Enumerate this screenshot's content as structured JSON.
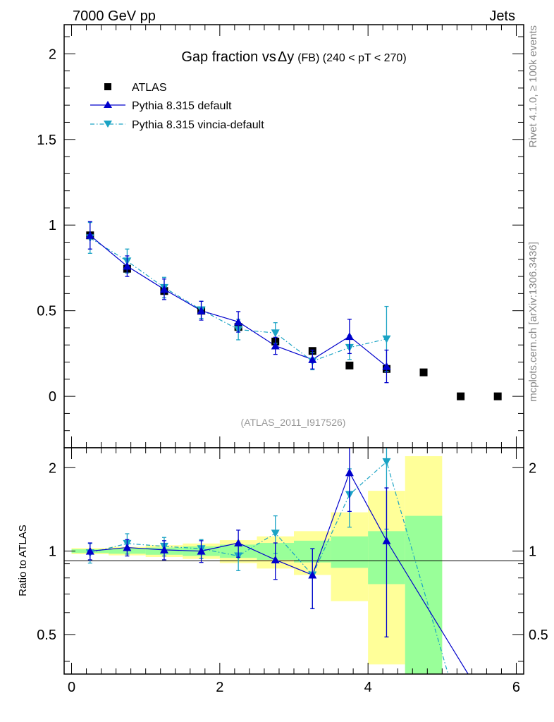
{
  "header": {
    "left": "7000 GeV pp",
    "right": "Jets"
  },
  "side_labels": {
    "rivet": "Rivet 4.1.0, ≥ 100k events",
    "mcplots": "mcplots.cern.ch [arXiv:1306.3436]"
  },
  "chart_data": [
    {
      "type": "scatter",
      "panel": "main",
      "title": "Gap fraction vs",
      "title_symbol": "Δy",
      "title_suffix": "(FB) (240 < pT < 270)",
      "watermark": "(ATLAS_2011_I917526)",
      "xlabel": "",
      "ylabel": "",
      "xlim": [
        -0.1,
        6.1
      ],
      "ylim": [
        -0.3,
        2.17
      ],
      "y_ticks": [
        0,
        0.5,
        1,
        1.5,
        2
      ],
      "y_tick_labels": [
        "0",
        "0.5",
        "1",
        "1.5",
        "2"
      ],
      "legend": [
        "ATLAS",
        "Pythia 8.315 default",
        "Pythia 8.315 vincia-default"
      ],
      "legend_position": "top-left",
      "series": [
        {
          "name": "ATLAS",
          "color": "#000000",
          "marker": "square",
          "x": [
            0.25,
            0.75,
            1.25,
            1.75,
            2.25,
            2.75,
            3.25,
            3.75,
            4.25,
            4.75,
            5.25,
            5.75
          ],
          "y": [
            0.94,
            0.745,
            0.615,
            0.5,
            0.405,
            0.32,
            0.265,
            0.18,
            0.16,
            0.14,
            0.0,
            0.0
          ]
        },
        {
          "name": "Pythia 8.315 default",
          "color": "#0000cc",
          "marker": "triangle-up",
          "line": "solid",
          "x": [
            0.25,
            0.75,
            1.25,
            1.75,
            2.25,
            2.75,
            3.25,
            3.75,
            4.25
          ],
          "y": [
            0.94,
            0.76,
            0.625,
            0.5,
            0.435,
            0.295,
            0.215,
            0.35,
            0.175
          ],
          "err": [
            0.08,
            0.06,
            0.06,
            0.055,
            0.06,
            0.05,
            0.055,
            0.1,
            0.095
          ]
        },
        {
          "name": "Pythia 8.315 vincia-default",
          "color": "#1aa3c4",
          "marker": "triangle-down",
          "line": "dash-dot",
          "x": [
            0.25,
            0.75,
            1.25,
            1.75,
            2.25,
            2.75,
            3.25,
            3.75,
            4.25
          ],
          "y": [
            0.925,
            0.79,
            0.635,
            0.505,
            0.39,
            0.37,
            0.205,
            0.285,
            0.335
          ],
          "err": [
            0.09,
            0.07,
            0.06,
            0.05,
            0.06,
            0.06,
            0.05,
            0.07,
            0.19
          ]
        }
      ]
    },
    {
      "type": "line",
      "panel": "ratio",
      "ylabel": "Ratio to ATLAS",
      "xlim": [
        -0.1,
        6.1
      ],
      "ylim": [
        0.36,
        2.36
      ],
      "y_ticks": [
        0.5,
        1,
        2
      ],
      "y_tick_labels": [
        "0.5",
        "1",
        "2"
      ],
      "x_ticks": [
        0,
        2,
        4,
        6
      ],
      "x_tick_labels": [
        "0",
        "2",
        "4",
        "6"
      ],
      "bands": {
        "x_edges": [
          0,
          0.5,
          1,
          1.5,
          2,
          2.5,
          3,
          3.5,
          4,
          4.5,
          5
        ],
        "green_low": [
          0.985,
          0.978,
          0.97,
          0.96,
          0.945,
          0.93,
          0.91,
          0.87,
          0.76,
          0.36
        ],
        "green_high": [
          1.015,
          1.022,
          1.03,
          1.04,
          1.055,
          1.07,
          1.09,
          1.13,
          1.18,
          1.34
        ],
        "yellow_low": [
          0.975,
          0.965,
          0.952,
          0.937,
          0.905,
          0.865,
          0.82,
          0.66,
          0.39,
          0.36
        ],
        "yellow_high": [
          1.025,
          1.035,
          1.05,
          1.065,
          1.095,
          1.13,
          1.18,
          1.38,
          1.65,
          2.2
        ]
      },
      "series": [
        {
          "name": "Pythia 8.315 default",
          "color": "#0000cc",
          "x": [
            0.25,
            0.75,
            1.25,
            1.75,
            2.25,
            2.75,
            3.25,
            3.75,
            4.25,
            5.35
          ],
          "y": [
            1.0,
            1.03,
            1.01,
            1.0,
            1.07,
            0.93,
            0.82,
            1.92,
            1.09,
            0.36
          ],
          "err": [
            0.07,
            0.07,
            0.08,
            0.09,
            0.12,
            0.14,
            0.2,
            0.53,
            0.6,
            0
          ]
        },
        {
          "name": "Pythia 8.315 vincia-default",
          "color": "#1aa3c4",
          "x": [
            0.25,
            0.75,
            1.25,
            1.75,
            2.25,
            2.75,
            3.25,
            3.75,
            4.25,
            5.08
          ],
          "y": [
            0.985,
            1.065,
            1.04,
            1.02,
            0.96,
            1.16,
            0.82,
            1.6,
            2.1,
            0.36
          ],
          "err": [
            0.08,
            0.09,
            0.08,
            0.08,
            0.11,
            0.18,
            0.2,
            0.38,
            0.9,
            0
          ]
        }
      ]
    }
  ]
}
